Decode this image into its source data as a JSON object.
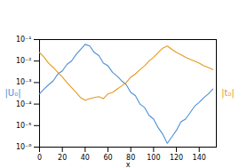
{
  "chart_data": {
    "type": "line",
    "log": "y",
    "x_label": "x",
    "x": [
      0,
      4,
      8,
      12,
      16,
      20,
      24,
      28,
      32,
      36,
      40,
      44,
      48,
      52,
      56,
      60,
      64,
      68,
      72,
      76,
      80,
      84,
      88,
      92,
      96,
      100,
      104,
      108,
      112,
      116,
      120,
      124,
      128,
      132,
      136,
      140,
      144,
      148,
      152
    ],
    "series": [
      {
        "name": "|U₀|",
        "color": "#4a90d9",
        "values": [
          0.0003,
          0.0005,
          0.0008,
          0.0012,
          0.0025,
          0.0035,
          0.007,
          0.01,
          0.02,
          0.035,
          0.06,
          0.05,
          0.025,
          0.018,
          0.008,
          0.006,
          0.003,
          0.002,
          0.0012,
          0.0008,
          0.00035,
          0.00025,
          0.0001,
          7e-05,
          3e-05,
          2e-05,
          8e-06,
          4e-06,
          1.5e-06,
          3e-06,
          6e-06,
          1.5e-05,
          2e-05,
          4e-05,
          8e-05,
          0.00012,
          0.0002,
          0.0003,
          0.0005
        ]
      },
      {
        "name": "|t₀|",
        "color": "#e69a1f",
        "values": [
          0.025,
          0.015,
          0.008,
          0.005,
          0.003,
          0.0018,
          0.001,
          0.0006,
          0.00035,
          0.0002,
          0.00015,
          0.00018,
          0.0002,
          0.00022,
          0.00018,
          0.0003,
          0.00035,
          0.0005,
          0.0007,
          0.001,
          0.0018,
          0.0025,
          0.004,
          0.006,
          0.01,
          0.015,
          0.025,
          0.04,
          0.05,
          0.035,
          0.025,
          0.02,
          0.015,
          0.012,
          0.01,
          0.008,
          0.006,
          0.005,
          0.004
        ]
      }
    ],
    "xlim": [
      0,
      155
    ],
    "xticks": [
      0,
      20,
      40,
      60,
      80,
      100,
      120,
      140
    ],
    "ylim": [
      1e-06,
      0.1
    ],
    "yticks": [
      {
        "value": 1e-06,
        "label": "10⁻⁶"
      },
      {
        "value": 1e-05,
        "label": "10⁻⁵"
      },
      {
        "value": 0.0001,
        "label": "10⁻⁴"
      },
      {
        "value": 0.001,
        "label": "10⁻³"
      },
      {
        "value": 0.01,
        "label": "10⁻²"
      },
      {
        "value": 0.1,
        "label": "10⁻¹"
      }
    ]
  }
}
